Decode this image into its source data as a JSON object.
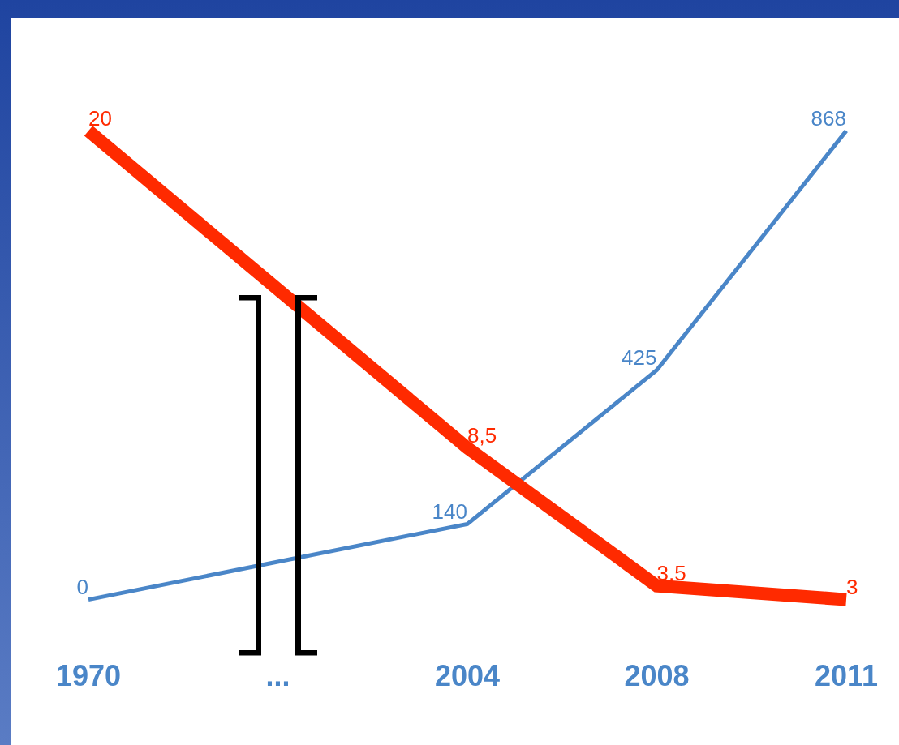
{
  "chart_data": {
    "type": "line",
    "categories": [
      "1970",
      "...",
      "2004",
      "2008",
      "2011"
    ],
    "series": [
      {
        "color": "#4a86c8",
        "values": [
          0,
          null,
          140,
          425,
          868
        ],
        "value_labels": [
          "0",
          null,
          "140",
          "425",
          "868"
        ]
      },
      {
        "color": "#ff2a00",
        "axis": "y2",
        "values": [
          20,
          null,
          8.5,
          3.5,
          3
        ],
        "value_labels": [
          "20",
          null,
          "8,5",
          "3,5",
          "3"
        ]
      }
    ],
    "tick_labels": "x",
    "grid": false,
    "marker": "none",
    "line_style": "solid"
  }
}
